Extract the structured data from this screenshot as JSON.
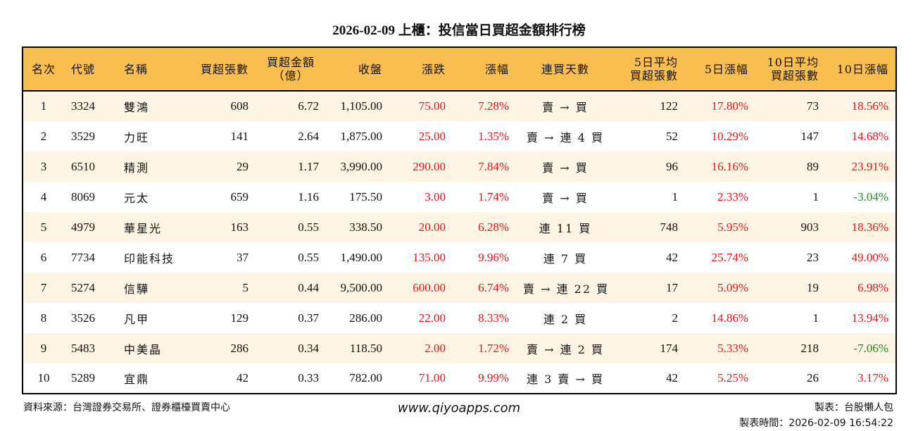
{
  "title": "2026-02-09 上櫃：投信當日買超金額排行榜",
  "headers": [
    "名次",
    "代號",
    "名稱",
    "買超張數",
    "買超金額\n（億）",
    "收盤",
    "漲跌",
    "漲幅",
    "連買天數",
    "5日平均\n買超張數",
    "5日漲幅",
    "10日平均\n買超張數",
    "10日漲幅"
  ],
  "colors": {
    "header_bg": "#F8BE4F",
    "row_alt_bg": "#FDF4E3",
    "up": "#E8141B",
    "down": "#1B8A1B"
  },
  "rows": [
    [
      "1",
      "3324",
      "雙鴻",
      "608",
      "6.72",
      "1,105.00",
      "75.00",
      "7.28%",
      "賣 → 買",
      "122",
      "17.80%",
      "73",
      "18.56%"
    ],
    [
      "2",
      "3529",
      "力旺",
      "141",
      "2.64",
      "1,875.00",
      "25.00",
      "1.35%",
      "賣 → 連 4 買",
      "52",
      "10.29%",
      "147",
      "14.68%"
    ],
    [
      "3",
      "6510",
      "精測",
      "29",
      "1.17",
      "3,990.00",
      "290.00",
      "7.84%",
      "賣 → 買",
      "96",
      "16.16%",
      "89",
      "23.91%"
    ],
    [
      "4",
      "8069",
      "元太",
      "659",
      "1.16",
      "175.50",
      "3.00",
      "1.74%",
      "賣 → 買",
      "1",
      "2.33%",
      "1",
      "-3.04%"
    ],
    [
      "5",
      "4979",
      "華星光",
      "163",
      "0.55",
      "338.50",
      "20.00",
      "6.28%",
      "連 11 買",
      "748",
      "5.95%",
      "903",
      "18.36%"
    ],
    [
      "6",
      "7734",
      "印能科技",
      "37",
      "0.55",
      "1,490.00",
      "135.00",
      "9.96%",
      "連 7 買",
      "42",
      "25.74%",
      "23",
      "49.00%"
    ],
    [
      "7",
      "5274",
      "信驊",
      "5",
      "0.44",
      "9,500.00",
      "600.00",
      "6.74%",
      "賣 → 連 22 買",
      "17",
      "5.09%",
      "19",
      "6.98%"
    ],
    [
      "8",
      "3526",
      "凡甲",
      "129",
      "0.37",
      "286.00",
      "22.00",
      "8.33%",
      "連 2 買",
      "2",
      "14.86%",
      "1",
      "13.94%"
    ],
    [
      "9",
      "5483",
      "中美晶",
      "286",
      "0.34",
      "118.50",
      "2.00",
      "1.72%",
      "賣 → 連 2 買",
      "174",
      "5.33%",
      "218",
      "-7.06%"
    ],
    [
      "10",
      "5289",
      "宜鼎",
      "42",
      "0.33",
      "782.00",
      "71.00",
      "9.99%",
      "連 3 賣 → 買",
      "42",
      "5.25%",
      "26",
      "3.17%"
    ]
  ],
  "footer": {
    "source": "資料來源：台灣證券交易所、證券櫃檯買賣中心",
    "website": "www.qiyoapps.com",
    "maker": "製表：台股懶人包",
    "time": "製表時間：2026-02-09 16:54:22"
  }
}
